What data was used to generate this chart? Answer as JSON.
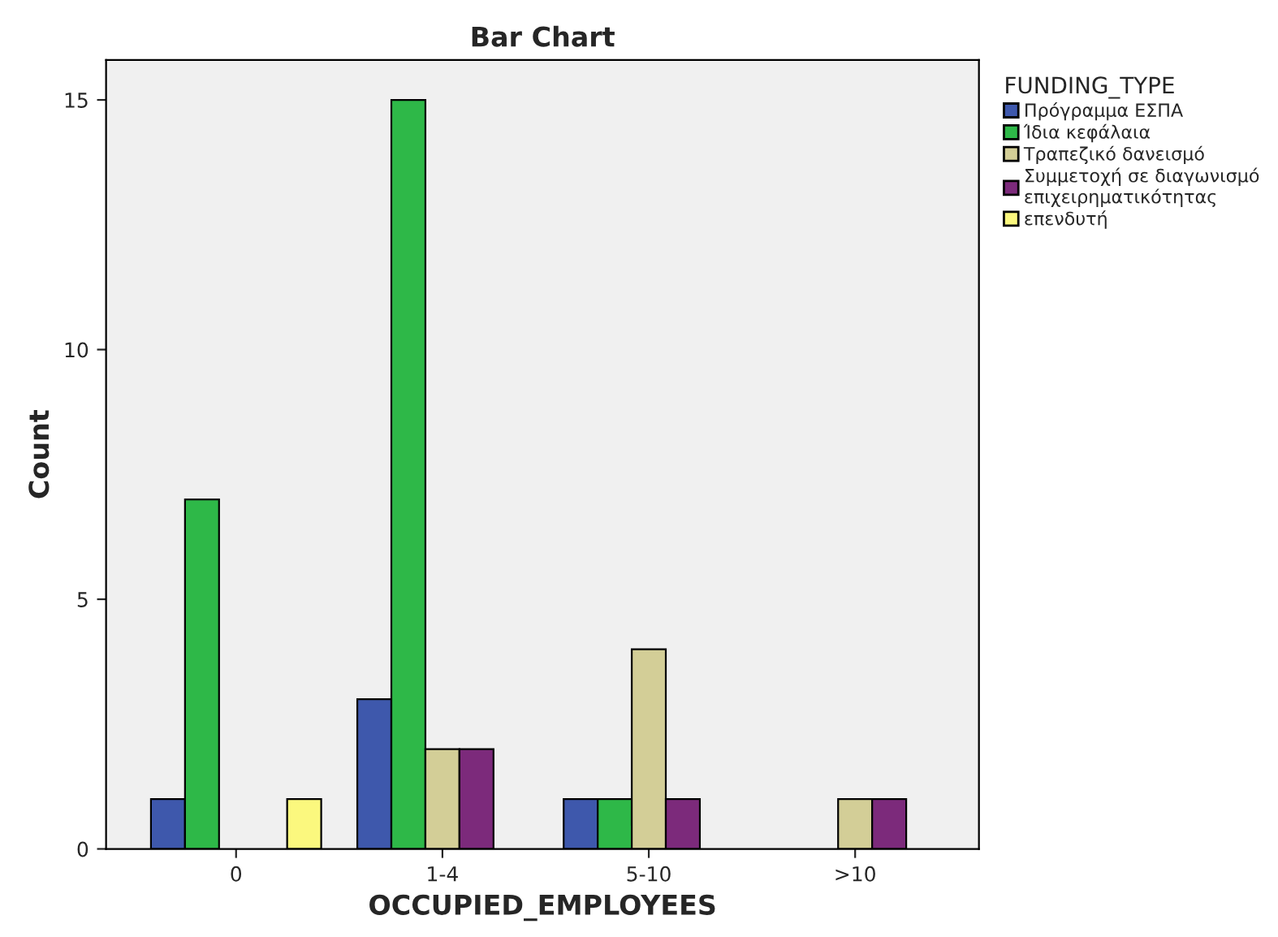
{
  "chart_data": {
    "type": "bar",
    "title": "Bar Chart",
    "xlabel": "OCCUPIED_EMPLOYEES",
    "ylabel": "Count",
    "legend_title": "FUNDING_TYPE",
    "legend": "right",
    "categories": [
      "0",
      "1-4",
      "5-10",
      ">10"
    ],
    "series": [
      {
        "name": "Πρόγραμμα ΕΣΠΑ",
        "color": "#3e58ac",
        "values": [
          1,
          3,
          1,
          null
        ]
      },
      {
        "name": "Ίδια κεφάλαια",
        "color": "#2eb848",
        "values": [
          7,
          15,
          1,
          null
        ]
      },
      {
        "name": "Τραπεζικό δανεισμό",
        "color": "#d3ce97",
        "values": [
          null,
          2,
          4,
          1
        ]
      },
      {
        "name": "Συμμετοχή σε διαγωνισμό\nεπιχειρηματικότητας",
        "color": "#7c2a7b",
        "values": [
          null,
          2,
          1,
          1
        ]
      },
      {
        "name": "επενδυτή",
        "color": "#fbf87e",
        "values": [
          1,
          null,
          null,
          null
        ]
      }
    ],
    "ylim": [
      0,
      15.8
    ],
    "yticks": [
      0,
      5,
      10,
      15
    ],
    "grid": false
  }
}
